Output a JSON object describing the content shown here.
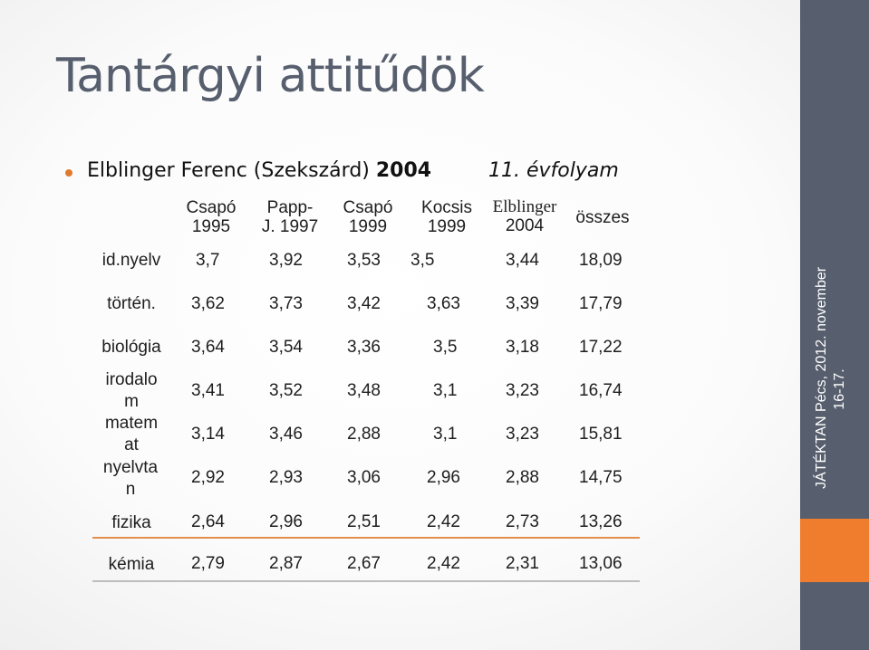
{
  "slide": {
    "title": "Tantárgyi attitűdök",
    "bullet": {
      "text": "Elblinger Ferenc (Szekszárd) ",
      "year": "2004",
      "grade": "11. évfolyam"
    }
  },
  "table": {
    "headers": [
      {
        "line1": "Csapó",
        "line2": "1995"
      },
      {
        "line1": "Papp-",
        "line2": "J. 1997"
      },
      {
        "line1": "Csapó",
        "line2": "1999"
      },
      {
        "line1": "Kocsis",
        "line2": "1999"
      },
      {
        "line1": "Elblinger",
        "line2": "2004"
      },
      {
        "line1": "összes",
        "line2": ""
      }
    ],
    "rows": [
      {
        "label": "id.nyelv",
        "values": [
          "3,7",
          "3,92",
          "3,53",
          "3,5",
          "3,44",
          "18,09"
        ]
      },
      {
        "label": "történ.",
        "values": [
          "3,62",
          "3,73",
          "3,42",
          "3,63",
          "3,39",
          "17,79"
        ]
      },
      {
        "label": "biológia",
        "values": [
          "3,64",
          "3,54",
          "3,36",
          "3,5",
          "3,18",
          "17,22"
        ]
      },
      {
        "label": "irodalo m",
        "values": [
          "3,41",
          "3,52",
          "3,48",
          "3,1",
          "3,23",
          "16,74"
        ]
      },
      {
        "label": "matem at",
        "values": [
          "3,14",
          "3,46",
          "2,88",
          "3,1",
          "3,23",
          "15,81"
        ]
      },
      {
        "label": "nyelvta n",
        "values": [
          "2,92",
          "2,93",
          "3,06",
          "2,96",
          "2,88",
          "14,75"
        ]
      },
      {
        "label": "fizika",
        "values": [
          "2,64",
          "2,96",
          "2,51",
          "2,42",
          "2,73",
          "13,26"
        ]
      },
      {
        "label": "kémia",
        "values": [
          "2,79",
          "2,87",
          "2,67",
          "2,42",
          "2,31",
          "13,06"
        ]
      }
    ]
  },
  "sidebar": {
    "line1": "JÁTÉKTAN Pécs, 2012. november",
    "line2": "16-17.",
    "colors": {
      "panel": "#575f6e",
      "accent": "#f07c2d"
    }
  }
}
